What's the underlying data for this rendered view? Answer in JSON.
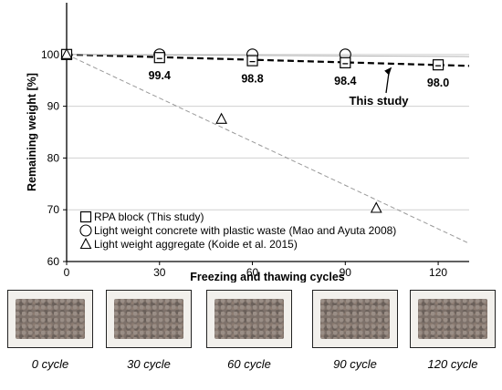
{
  "chart_data": {
    "type": "scatter",
    "title": "",
    "xlabel": "Freezing and thawing cycles",
    "ylabel": "Remaining weight [%]",
    "xlim": [
      0,
      130
    ],
    "ylim": [
      60,
      110
    ],
    "xticks": [
      0,
      30,
      60,
      90,
      120
    ],
    "yticks": [
      60,
      70,
      80,
      90,
      100
    ],
    "grid": "horizontal",
    "legend_position": "bottom-left",
    "series": [
      {
        "name": "RPA block (This study)",
        "marker": "square",
        "x": [
          0,
          30,
          60,
          90,
          120
        ],
        "y": [
          100,
          99.4,
          98.8,
          98.4,
          98.0
        ],
        "labels": [
          "",
          "99.4",
          "98.8",
          "98.4",
          "98.0"
        ]
      },
      {
        "name": "Light weight concrete with plastic waste (Mao and Ayuta 2008)",
        "marker": "circle",
        "x": [
          30,
          60,
          90
        ],
        "y": [
          100,
          100,
          100
        ]
      },
      {
        "name": "Light weight aggregate (Koide et al. 2015)",
        "marker": "triangle",
        "x": [
          0,
          50,
          100
        ],
        "y": [
          100,
          87.5,
          70.3
        ]
      }
    ],
    "trendlines": [
      {
        "series": 0,
        "style": "bold-dashed",
        "x": [
          0,
          130
        ],
        "y": [
          100,
          97.8
        ]
      },
      {
        "series": 1,
        "style": "thin-solid",
        "x": [
          0,
          130
        ],
        "y": [
          100,
          99.6
        ]
      },
      {
        "series": 2,
        "style": "thin-dashed",
        "x": [
          0,
          130
        ],
        "y": [
          100,
          63.5
        ]
      }
    ],
    "annotation": {
      "text": "This study",
      "arrow_target": {
        "x": 105,
        "y": 98.1
      }
    }
  },
  "photos": [
    {
      "caption": "0 cycle"
    },
    {
      "caption": "30 cycle"
    },
    {
      "caption": "60 cycle"
    },
    {
      "caption": "90 cycle"
    },
    {
      "caption": "120 cycle"
    }
  ]
}
